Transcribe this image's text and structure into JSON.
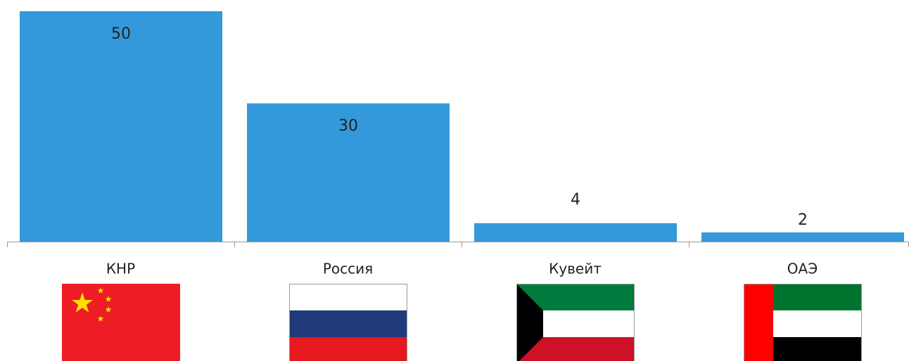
{
  "chart_data": {
    "type": "bar",
    "categories": [
      "КНР",
      "Россия",
      "Кувейт",
      "ОАЭ"
    ],
    "values": [
      50,
      30,
      4,
      2
    ],
    "color": "#3399db"
  }
}
